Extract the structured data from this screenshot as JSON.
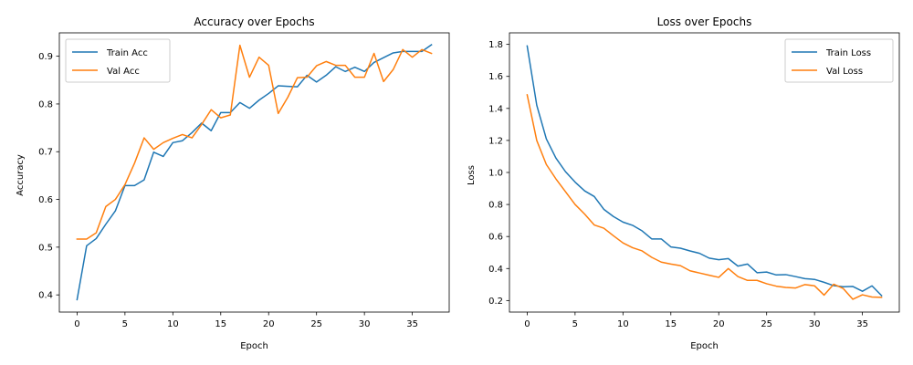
{
  "chart_data": [
    {
      "type": "line",
      "title": "Accuracy over Epochs",
      "xlabel": "Epoch",
      "ylabel": "Accuracy",
      "xlim": [
        -1.85,
        38.85
      ],
      "ylim": [
        0.364,
        0.949
      ],
      "xticks": [
        0,
        5,
        10,
        15,
        20,
        25,
        30,
        35
      ],
      "xtick_labels": [
        "0",
        "5",
        "10",
        "15",
        "20",
        "25",
        "30",
        "35"
      ],
      "yticks": [
        0.4,
        0.5,
        0.6,
        0.7,
        0.8,
        0.9
      ],
      "ytick_labels": [
        "0.4",
        "0.5",
        "0.6",
        "0.7",
        "0.8",
        "0.9"
      ],
      "legend_position": "top-left",
      "grid": false,
      "x": [
        0,
        1,
        2,
        3,
        4,
        5,
        6,
        7,
        8,
        9,
        10,
        11,
        12,
        13,
        14,
        15,
        16,
        17,
        18,
        19,
        20,
        21,
        22,
        23,
        24,
        25,
        26,
        27,
        28,
        29,
        30,
        31,
        32,
        33,
        34,
        35,
        36,
        37
      ],
      "series": [
        {
          "name": "Train Acc",
          "color": "#1f77b4",
          "values": [
            0.39,
            0.503,
            0.518,
            0.548,
            0.576,
            0.629,
            0.629,
            0.641,
            0.699,
            0.69,
            0.719,
            0.723,
            0.74,
            0.76,
            0.744,
            0.782,
            0.782,
            0.803,
            0.791,
            0.808,
            0.822,
            0.838,
            0.837,
            0.836,
            0.86,
            0.846,
            0.86,
            0.878,
            0.868,
            0.877,
            0.868,
            0.887,
            0.897,
            0.907,
            0.91,
            0.91,
            0.91,
            0.924
          ]
        },
        {
          "name": "Val Acc",
          "color": "#ff7f0e",
          "values": [
            0.517,
            0.517,
            0.53,
            0.585,
            0.6,
            0.631,
            0.676,
            0.729,
            0.705,
            0.719,
            0.728,
            0.736,
            0.729,
            0.757,
            0.788,
            0.771,
            0.777,
            0.923,
            0.856,
            0.898,
            0.881,
            0.78,
            0.814,
            0.855,
            0.856,
            0.88,
            0.889,
            0.881,
            0.881,
            0.856,
            0.856,
            0.906,
            0.847,
            0.872,
            0.914,
            0.898,
            0.914,
            0.906
          ]
        }
      ]
    },
    {
      "type": "line",
      "title": "Loss over Epochs",
      "xlabel": "Epoch",
      "ylabel": "Loss",
      "xlim": [
        -1.85,
        38.85
      ],
      "ylim": [
        0.128,
        1.872
      ],
      "xticks": [
        0,
        5,
        10,
        15,
        20,
        25,
        30,
        35
      ],
      "xtick_labels": [
        "0",
        "5",
        "10",
        "15",
        "20",
        "25",
        "30",
        "35"
      ],
      "yticks": [
        0.2,
        0.4,
        0.6,
        0.8,
        1.0,
        1.2,
        1.4,
        1.6,
        1.8
      ],
      "ytick_labels": [
        "0.2",
        "0.4",
        "0.6",
        "0.8",
        "1.0",
        "1.2",
        "1.4",
        "1.6",
        "1.8"
      ],
      "legend_position": "top-right",
      "grid": false,
      "x": [
        0,
        1,
        2,
        3,
        4,
        5,
        6,
        7,
        8,
        9,
        10,
        11,
        12,
        13,
        14,
        15,
        16,
        17,
        18,
        19,
        20,
        21,
        22,
        23,
        24,
        25,
        26,
        27,
        28,
        29,
        30,
        31,
        32,
        33,
        34,
        35,
        36,
        37
      ],
      "series": [
        {
          "name": "Train Loss",
          "color": "#1f77b4",
          "values": [
            1.79,
            1.42,
            1.21,
            1.09,
            1.005,
            0.94,
            0.885,
            0.85,
            0.77,
            0.725,
            0.69,
            0.67,
            0.635,
            0.585,
            0.585,
            0.535,
            0.527,
            0.51,
            0.495,
            0.465,
            0.455,
            0.462,
            0.415,
            0.428,
            0.374,
            0.378,
            0.36,
            0.362,
            0.35,
            0.337,
            0.332,
            0.314,
            0.293,
            0.286,
            0.288,
            0.258,
            0.292,
            0.231
          ]
        },
        {
          "name": "Val Loss",
          "color": "#ff7f0e",
          "values": [
            1.485,
            1.2,
            1.05,
            0.96,
            0.88,
            0.8,
            0.74,
            0.672,
            0.652,
            0.605,
            0.56,
            0.53,
            0.51,
            0.47,
            0.44,
            0.428,
            0.418,
            0.386,
            0.372,
            0.358,
            0.345,
            0.4,
            0.35,
            0.326,
            0.326,
            0.305,
            0.29,
            0.282,
            0.278,
            0.3,
            0.292,
            0.234,
            0.302,
            0.275,
            0.208,
            0.236,
            0.222,
            0.22
          ]
        }
      ]
    }
  ]
}
